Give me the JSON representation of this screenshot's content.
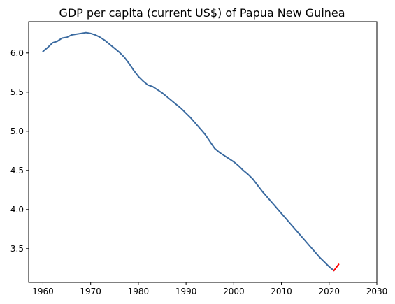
{
  "chart_data": {
    "type": "line",
    "title": "GDP per capita (current US$) of Papua New Guinea",
    "xlabel": "",
    "ylabel": "",
    "xlim": [
      1957,
      2030
    ],
    "ylim": [
      3.07,
      6.4
    ],
    "grid": false,
    "x_ticks": [
      1960,
      1970,
      1980,
      1990,
      2000,
      2010,
      2020,
      2030
    ],
    "y_ticks": [
      3.5,
      4.0,
      4.5,
      5.0,
      5.5,
      6.0
    ],
    "colors": {
      "main": "#3a6aa0",
      "forecast": "#ff0000"
    },
    "series": [
      {
        "x": [
          1960,
          1961,
          1962,
          1963,
          1964,
          1965,
          1966,
          1967,
          1968,
          1969,
          1970,
          1971,
          1972,
          1973,
          1974,
          1975,
          1976,
          1977,
          1978,
          1979,
          1980,
          1981,
          1982,
          1983,
          1984,
          1985,
          1986,
          1987,
          1988,
          1989,
          1990,
          1991,
          1992,
          1993,
          1994,
          1995,
          1996,
          1997,
          1998,
          1999,
          2000,
          2001,
          2002,
          2003,
          2004,
          2005,
          2006,
          2007,
          2008,
          2009,
          2010,
          2011,
          2012,
          2013,
          2014,
          2015,
          2016,
          2017,
          2018,
          2019,
          2020,
          2021
        ],
        "y": [
          6.02,
          6.07,
          6.13,
          6.15,
          6.19,
          6.2,
          6.23,
          6.24,
          6.25,
          6.26,
          6.25,
          6.23,
          6.2,
          6.16,
          6.11,
          6.06,
          6.01,
          5.95,
          5.87,
          5.78,
          5.7,
          5.64,
          5.59,
          5.57,
          5.53,
          5.49,
          5.44,
          5.39,
          5.34,
          5.29,
          5.23,
          5.17,
          5.1,
          5.03,
          4.96,
          4.87,
          4.78,
          4.73,
          4.69,
          4.65,
          4.61,
          4.56,
          4.5,
          4.45,
          4.39,
          4.31,
          4.23,
          4.16,
          4.09,
          4.02,
          3.95,
          3.88,
          3.81,
          3.74,
          3.67,
          3.6,
          3.53,
          3.46,
          3.39,
          3.33,
          3.27,
          3.22
        ]
      },
      {
        "x": [
          2021,
          2022
        ],
        "y": [
          3.22,
          3.3
        ]
      }
    ]
  }
}
